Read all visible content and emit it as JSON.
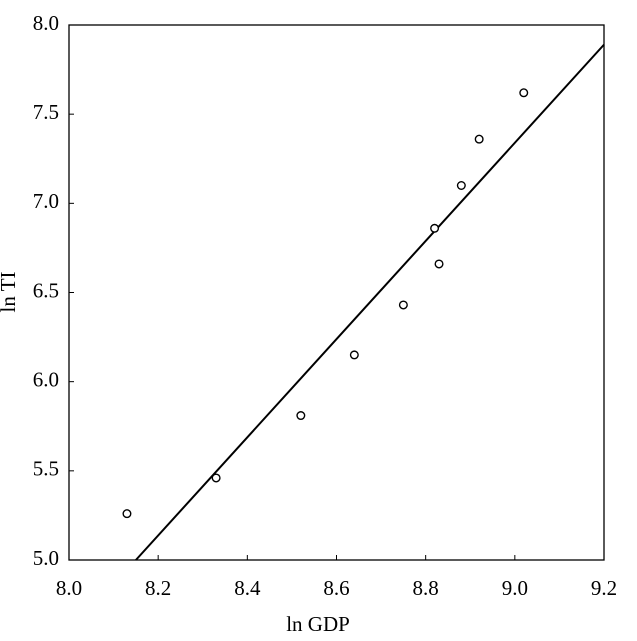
{
  "chart_data": {
    "type": "scatter",
    "x_label": "ln GDP",
    "y_label": "ln TI",
    "x": [
      8.13,
      8.33,
      8.52,
      8.64,
      8.75,
      8.82,
      8.83,
      8.88,
      8.92,
      9.02
    ],
    "y": [
      5.26,
      5.46,
      5.81,
      6.15,
      6.43,
      6.86,
      6.66,
      7.1,
      7.36,
      7.62
    ],
    "color": "#000000",
    "fit_line": {
      "x": [
        8.15,
        9.2
      ],
      "y": [
        5.0,
        7.89
      ]
    },
    "xlim": [
      8.0,
      9.2
    ],
    "xticks": [
      {
        "value": 8.0,
        "label": "8.0"
      },
      8.2,
      8.4,
      8.6,
      8.8,
      {
        "value": 9.0,
        "label": "9.0"
      },
      9.2
    ],
    "ylim": [
      5.0,
      8.0
    ],
    "yticks": [
      {
        "value": 5.0,
        "label": "5.0"
      },
      5.5,
      {
        "value": 6.0,
        "label": "6.0"
      },
      6.5,
      {
        "value": 7.0,
        "label": "7.0"
      },
      7.5,
      {
        "value": 8.0,
        "label": "8.0"
      }
    ],
    "grid": false
  }
}
